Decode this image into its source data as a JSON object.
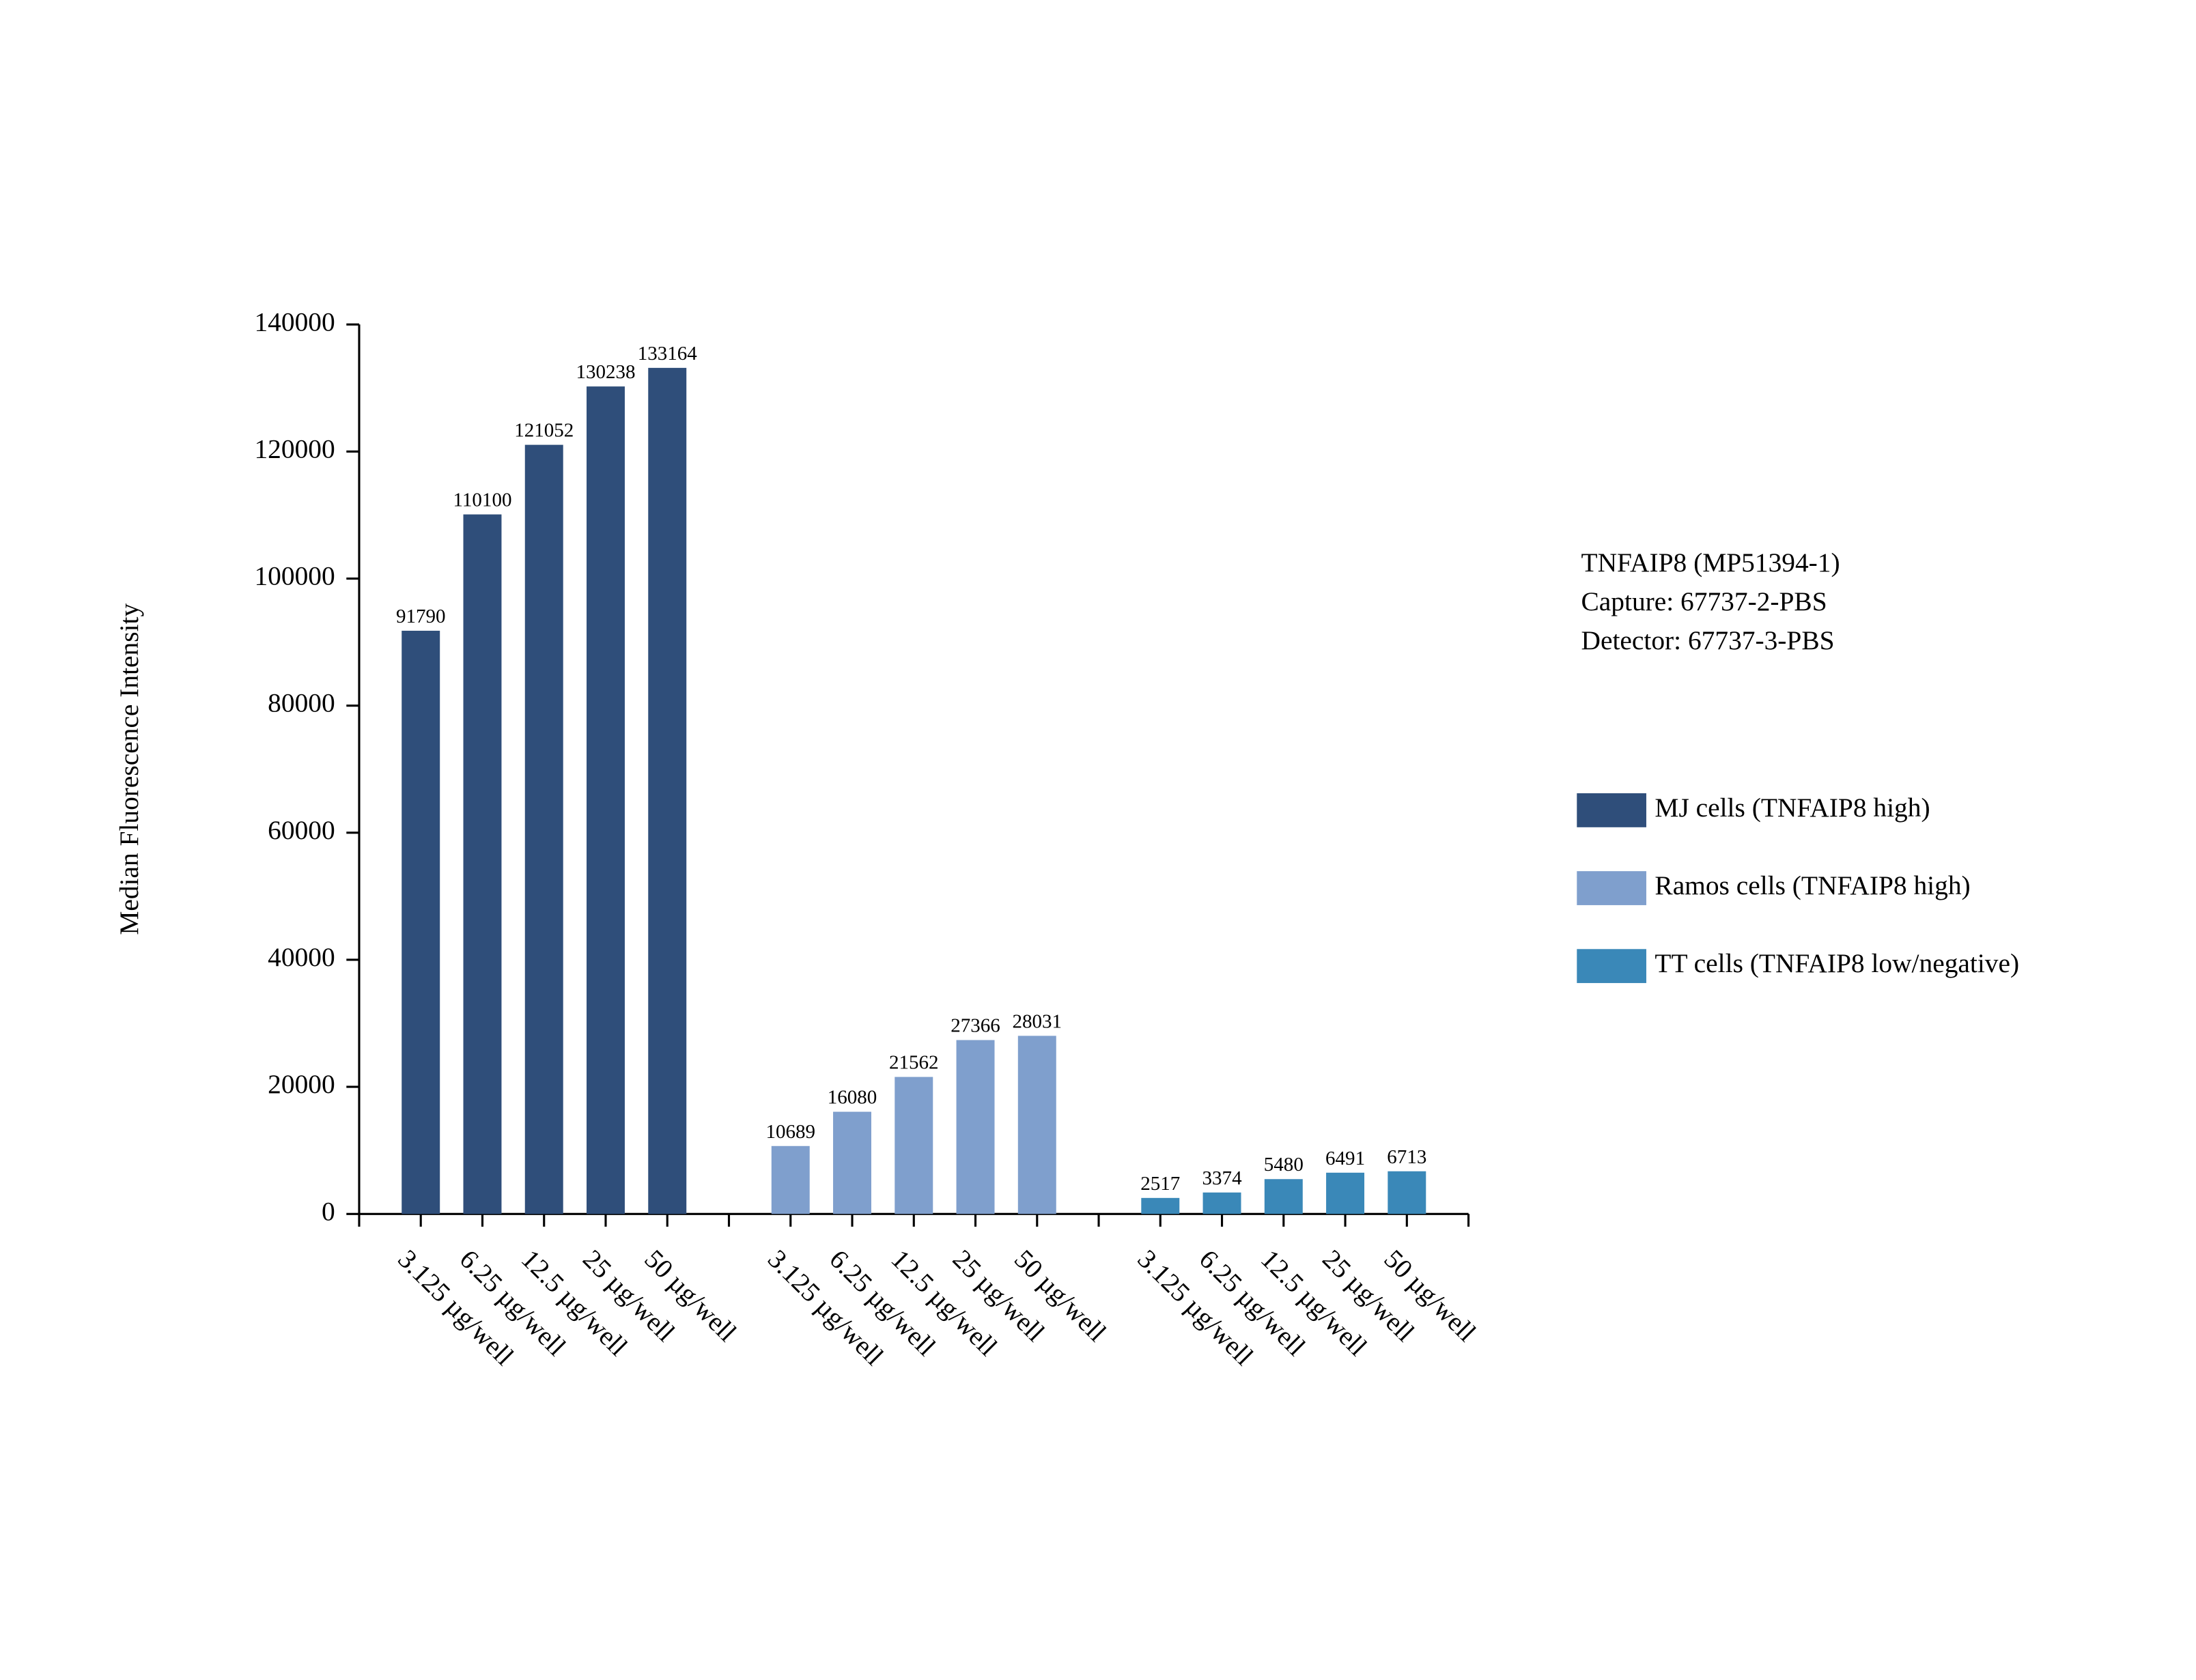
{
  "chart_data": {
    "type": "bar",
    "y_label": "Median Fluorescence Intensity",
    "annotations": [
      "TNFAIP8 (MP51394-1)",
      "Capture: 67737-2-PBS",
      "Detector: 67737-3-PBS"
    ],
    "categories": [
      "3.125 µg/well",
      "6.25 µg/well",
      "12.5 µg/well",
      "25 µg/well",
      "50 µg/well",
      null,
      "3.125 µg/well",
      "6.25 µg/well",
      "12.5 µg/well",
      "25 µg/well",
      "50 µg/well",
      null,
      "3.125 µg/well",
      "6.25 µg/well",
      "12.5 µg/well",
      "25 µg/well",
      "50 µg/well"
    ],
    "series": [
      {
        "name": "MJ cells (TNFAIP8 high)",
        "color": "#2f4e7a",
        "values": [
          91790,
          110100,
          121052,
          130238,
          133164,
          null,
          null,
          null,
          null,
          null,
          null,
          null,
          null,
          null,
          null,
          null,
          null
        ]
      },
      {
        "name": "Ramos cells (TNFAIP8 high)",
        "color": "#7f9fcd",
        "values": [
          null,
          null,
          null,
          null,
          null,
          null,
          10689,
          16080,
          21562,
          27366,
          28031,
          null,
          null,
          null,
          null,
          null,
          null
        ]
      },
      {
        "name": "TT cells (TNFAIP8 low/negative)",
        "color": "#3a88b8",
        "values": [
          null,
          null,
          null,
          null,
          null,
          null,
          null,
          null,
          null,
          null,
          null,
          null,
          2517,
          3374,
          5480,
          6491,
          6713
        ]
      }
    ],
    "ylim": [
      0,
      140000
    ],
    "yticks": [
      0,
      20000,
      40000,
      60000,
      80000,
      100000,
      120000,
      140000
    ],
    "legend": "right"
  }
}
